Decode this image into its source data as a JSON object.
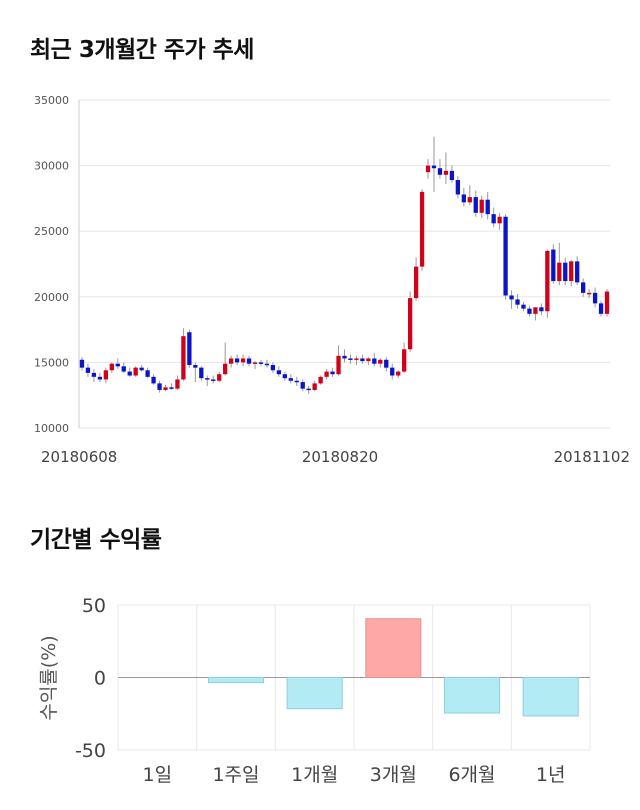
{
  "sections": {
    "price_title": "최근 3개월간 주가 추세",
    "returns_title": "기간별 수익률"
  },
  "chart_data": [
    {
      "type": "candlestick",
      "title": "최근 3개월간 주가 추세",
      "xlabel": "",
      "ylabel": "",
      "ylim": [
        10000,
        35000
      ],
      "yticks": [
        10000,
        15000,
        20000,
        25000,
        30000,
        35000
      ],
      "ytick_labels": [
        "10000",
        "15000",
        "20000",
        "25000",
        "30000",
        "35000"
      ],
      "xtick_labels": [
        "20180608",
        "20180820",
        "20181102"
      ],
      "grid": true,
      "colors": {
        "up": "#d0021b",
        "down": "#0a14c8",
        "wick": "#999999",
        "grid": "#e6e6e6"
      },
      "ohlc": [
        [
          15200,
          15400,
          14400,
          14600
        ],
        [
          14600,
          14900,
          13900,
          14200
        ],
        [
          14200,
          14500,
          13500,
          13900
        ],
        [
          13900,
          14200,
          13500,
          13700
        ],
        [
          13700,
          14600,
          13400,
          14400
        ],
        [
          14400,
          15000,
          14200,
          14900
        ],
        [
          14900,
          15300,
          14500,
          14700
        ],
        [
          14700,
          15000,
          14200,
          14300
        ],
        [
          14300,
          14600,
          13900,
          14000
        ],
        [
          14000,
          14700,
          13900,
          14600
        ],
        [
          14600,
          14800,
          14300,
          14400
        ],
        [
          14400,
          14600,
          13800,
          13900
        ],
        [
          13900,
          14100,
          13300,
          13400
        ],
        [
          13400,
          13600,
          12700,
          12900
        ],
        [
          12900,
          13300,
          12800,
          13100
        ],
        [
          13100,
          13400,
          12900,
          13000
        ],
        [
          13000,
          14000,
          12900,
          13700
        ],
        [
          13700,
          17600,
          13600,
          17000
        ],
        [
          17300,
          17500,
          14600,
          14800
        ],
        [
          14800,
          15000,
          13500,
          14600
        ],
        [
          14600,
          14700,
          13600,
          13800
        ],
        [
          13800,
          14000,
          13200,
          13700
        ],
        [
          13700,
          14000,
          13400,
          13600
        ],
        [
          13600,
          14300,
          13500,
          14100
        ],
        [
          14100,
          16500,
          14000,
          14900
        ],
        [
          14900,
          15500,
          14600,
          15300
        ],
        [
          15300,
          15600,
          14800,
          15000
        ],
        [
          15000,
          15600,
          14700,
          15300
        ],
        [
          15300,
          15500,
          14700,
          14900
        ],
        [
          14900,
          15100,
          14500,
          15000
        ],
        [
          15000,
          15200,
          14700,
          14900
        ],
        [
          14900,
          15200,
          14600,
          14800
        ],
        [
          14800,
          15000,
          14200,
          14400
        ],
        [
          14400,
          14700,
          13900,
          14100
        ],
        [
          14100,
          14300,
          13600,
          13800
        ],
        [
          13800,
          14100,
          13400,
          13600
        ],
        [
          13600,
          13900,
          13200,
          13500
        ],
        [
          13500,
          13700,
          12800,
          13000
        ],
        [
          13000,
          13200,
          12600,
          12900
        ],
        [
          12900,
          13600,
          12800,
          13400
        ],
        [
          13400,
          14000,
          13300,
          13900
        ],
        [
          13900,
          14500,
          13700,
          14300
        ],
        [
          14300,
          14600,
          13900,
          14100
        ],
        [
          14100,
          16300,
          14000,
          15500
        ],
        [
          15500,
          16000,
          15000,
          15300
        ],
        [
          15300,
          15600,
          14900,
          15200
        ],
        [
          15200,
          15500,
          14800,
          15300
        ],
        [
          15300,
          15600,
          14900,
          15100
        ],
        [
          15100,
          15400,
          14800,
          15300
        ],
        [
          15300,
          15700,
          14700,
          14900
        ],
        [
          14900,
          15300,
          14600,
          15200
        ],
        [
          15200,
          15400,
          14300,
          14600
        ],
        [
          14600,
          14900,
          13700,
          14000
        ],
        [
          14000,
          14400,
          13800,
          14300
        ],
        [
          14300,
          16500,
          14200,
          16000
        ],
        [
          16000,
          20400,
          15800,
          19900
        ],
        [
          19900,
          23000,
          19700,
          22300
        ],
        [
          22300,
          28200,
          22000,
          28000
        ],
        [
          29500,
          30500,
          29000,
          30000
        ],
        [
          30000,
          32200,
          28000,
          29800
        ],
        [
          29800,
          30500,
          29000,
          29300
        ],
        [
          29300,
          31000,
          28600,
          29600
        ],
        [
          29600,
          30000,
          28700,
          28900
        ],
        [
          28900,
          29200,
          27500,
          27800
        ],
        [
          27800,
          28300,
          26900,
          27200
        ],
        [
          27200,
          28500,
          27000,
          27600
        ],
        [
          27600,
          28100,
          26100,
          26400
        ],
        [
          26400,
          27700,
          26000,
          27400
        ],
        [
          27400,
          28000,
          25900,
          26300
        ],
        [
          26300,
          26800,
          25300,
          25600
        ],
        [
          25600,
          26400,
          25100,
          26100
        ],
        [
          26100,
          26300,
          19800,
          20100
        ],
        [
          20100,
          20500,
          19100,
          19800
        ],
        [
          19800,
          20200,
          19100,
          19400
        ],
        [
          19400,
          19600,
          18900,
          19100
        ],
        [
          19100,
          19300,
          18500,
          18700
        ],
        [
          18700,
          19200,
          18200,
          19200
        ],
        [
          19200,
          19500,
          18600,
          18900
        ],
        [
          18900,
          23600,
          18400,
          23500
        ],
        [
          23600,
          24000,
          21000,
          21200
        ],
        [
          21200,
          24100,
          20900,
          22600
        ],
        [
          22600,
          23000,
          20900,
          21200
        ],
        [
          21200,
          22800,
          20800,
          22700
        ],
        [
          22700,
          23100,
          20900,
          21100
        ],
        [
          21100,
          21400,
          20000,
          20300
        ],
        [
          20300,
          20600,
          19900,
          20300
        ],
        [
          20300,
          20700,
          19200,
          19500
        ],
        [
          19500,
          19700,
          18500,
          18700
        ],
        [
          18700,
          20600,
          18500,
          20400
        ]
      ]
    },
    {
      "type": "bar",
      "title": "기간별 수익률",
      "xlabel": "",
      "ylabel": "수익률(%)",
      "ylim": [
        -50,
        50
      ],
      "yticks": [
        50,
        0,
        -50
      ],
      "ytick_labels": [
        "50",
        "0",
        "-50"
      ],
      "categories": [
        "1일",
        "1주일",
        "1개월",
        "3개월",
        "6개월",
        "1년"
      ],
      "values": [
        0,
        -3.5,
        -21.5,
        40.5,
        -24.5,
        -26.5
      ],
      "colors": {
        "positive": "#ffa8a8",
        "positive_border": "#e99090",
        "negative": "#b3ebf5",
        "negative_border": "#8ccfdc"
      }
    }
  ]
}
